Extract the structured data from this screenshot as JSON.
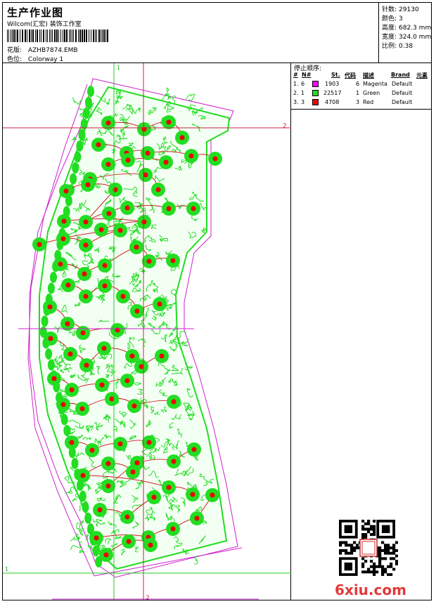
{
  "header": {
    "title": "生产作业图",
    "company": "Wilcom(汇宏) 装饰工作室",
    "design_label": "花版:",
    "design_value": "AZHB7874.EMB",
    "colorway_label": "色位:",
    "colorway_value": "Colorway 1"
  },
  "stats": [
    {
      "label": "针数:",
      "value": "29130"
    },
    {
      "label": "颜色:",
      "value": "3"
    },
    {
      "label": "高度:",
      "value": "682.3 mm"
    },
    {
      "label": "宽度:",
      "value": "324.0 mm"
    },
    {
      "label": "比例:",
      "value": "0.38"
    }
  ],
  "stop_sequence": {
    "title": "停止顺序:",
    "headers": {
      "num": "#",
      "needle": "N#",
      "st": "St.",
      "code": "代码",
      "desc": "描述",
      "brand": "Brand",
      "element": "元素"
    },
    "rows": [
      {
        "num": "1.",
        "needle": "6",
        "color": "#ff00ff",
        "st": "1903",
        "code": "6",
        "desc": "Magenta",
        "brand": "Default"
      },
      {
        "num": "2.",
        "needle": "1",
        "color": "#22dd22",
        "st": "22517",
        "code": "1",
        "desc": "Green",
        "brand": "Default"
      },
      {
        "num": "3.",
        "needle": "3",
        "color": "#ee0000",
        "st": "4708",
        "code": "3",
        "desc": "Red",
        "brand": "Default"
      }
    ]
  },
  "guides": {
    "v1": "1",
    "h2": "2",
    "h1": "1",
    "v2": "2"
  },
  "watermark": "6xiu.com",
  "colors": {
    "magenta": "#cc22cc",
    "green": "#22dd22",
    "red": "#ee0000",
    "guide": "#cc2244",
    "guide_green": "#22cc22"
  }
}
